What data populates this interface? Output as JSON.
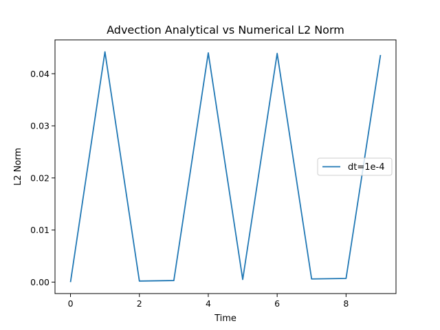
{
  "chart_data": {
    "type": "line",
    "title": "Advection Analytical vs Numerical L2 Norm",
    "xlabel": "Time",
    "ylabel": "L2 Norm",
    "xlim": [
      -0.45,
      9.45
    ],
    "ylim": [
      -0.0022,
      0.0465
    ],
    "xticks": [
      0,
      2,
      4,
      6,
      8
    ],
    "xtick_labels": [
      "0",
      "2",
      "4",
      "6",
      "8"
    ],
    "yticks": [
      0.0,
      0.01,
      0.02,
      0.03,
      0.04
    ],
    "ytick_labels": [
      "0.00",
      "0.01",
      "0.02",
      "0.03",
      "0.04"
    ],
    "grid": false,
    "legend_position": "center-right",
    "series": [
      {
        "name": "dt=1e-4",
        "color": "#1f77b4",
        "x": [
          0,
          1,
          2,
          3,
          4,
          5,
          6,
          7,
          8,
          9
        ],
        "y": [
          0.0,
          0.0442,
          0.0002,
          0.0003,
          0.044,
          0.0005,
          0.0439,
          0.0006,
          0.0007,
          0.0436
        ]
      }
    ]
  }
}
